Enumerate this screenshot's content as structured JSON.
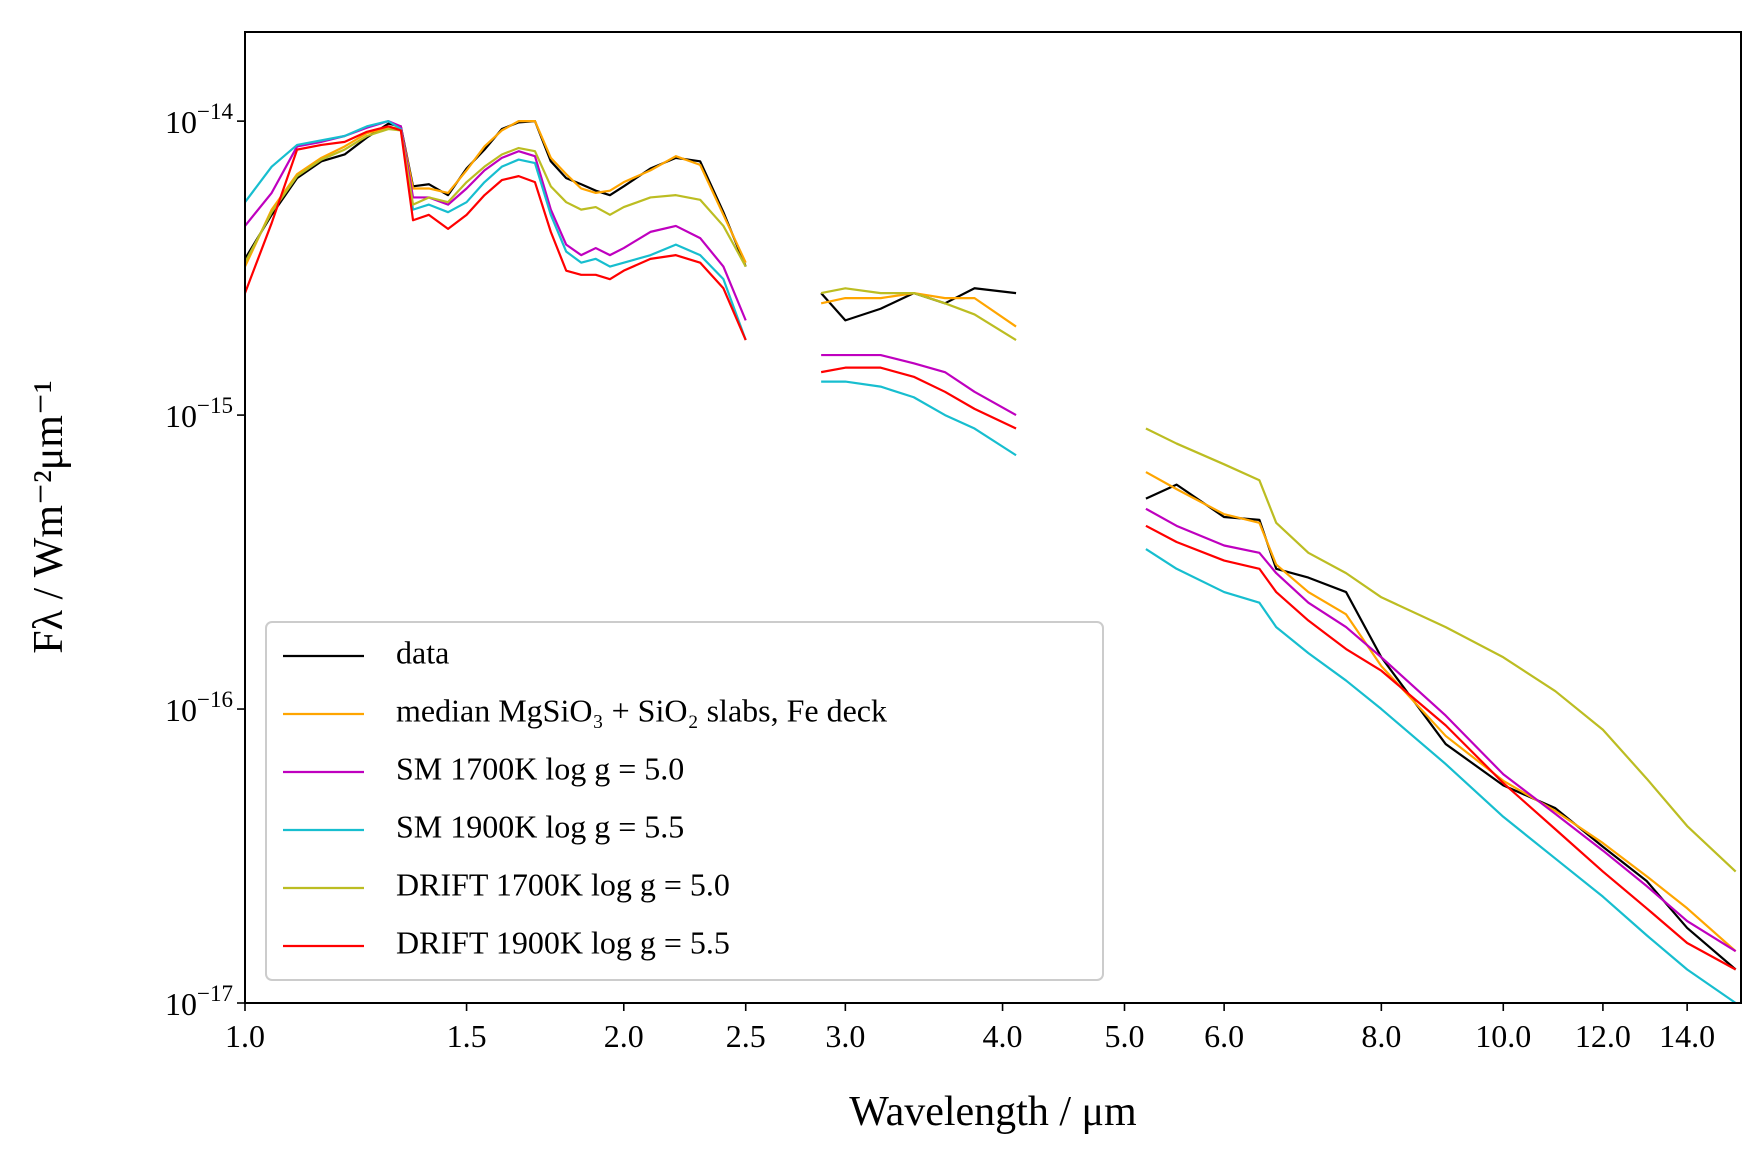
{
  "chart_data": {
    "type": "line",
    "x_label": "Wavelength / μm",
    "y_label": "Fλ / Wm⁻²μm⁻¹",
    "xscale": "log",
    "yscale": "log",
    "xlim": [
      1.0,
      15.45
    ],
    "ylim": [
      1e-17,
      2.01e-14
    ],
    "xticks": [
      {
        "value": 1.0,
        "label": "1.0"
      },
      {
        "value": 1.5,
        "label": "1.5"
      },
      {
        "value": 2.0,
        "label": "2.0"
      },
      {
        "value": 2.5,
        "label": "2.5"
      },
      {
        "value": 3.0,
        "label": "3.0"
      },
      {
        "value": 4.0,
        "label": "4.0"
      },
      {
        "value": 5.0,
        "label": "5.0"
      },
      {
        "value": 6.0,
        "label": "6.0"
      },
      {
        "value": 8.0,
        "label": "8.0"
      },
      {
        "value": 10.0,
        "label": "10.0"
      },
      {
        "value": 12.0,
        "label": "12.0"
      },
      {
        "value": 14.0,
        "label": "14.0"
      }
    ],
    "yticks": [
      {
        "value": 1e-17,
        "label": "10−17"
      },
      {
        "value": 1e-16,
        "label": "10−16"
      },
      {
        "value": 1e-15,
        "label": "10−15"
      },
      {
        "value": 1e-14,
        "label": "10−14"
      }
    ],
    "legend": "lower left",
    "x": [
      1.0,
      1.05,
      1.1,
      1.15,
      1.2,
      1.25,
      1.3,
      1.33,
      1.36,
      1.4,
      1.45,
      1.5,
      1.55,
      1.6,
      1.65,
      1.7,
      1.75,
      1.8,
      1.85,
      1.9,
      1.95,
      2.0,
      2.1,
      2.2,
      2.3,
      2.4,
      2.5,
      2.7,
      2.87,
      3.0,
      3.2,
      3.4,
      3.6,
      3.8,
      4.1,
      4.6,
      5.2,
      5.5,
      6.0,
      6.4,
      6.6,
      7.0,
      7.5,
      8.0,
      9.0,
      10.0,
      11.0,
      12.0,
      13.0,
      14.0,
      15.3
    ],
    "series": [
      {
        "name": "data",
        "color": "#000000",
        "values": [
          3.4e-15,
          4.8e-15,
          6.4e-15,
          7.3e-15,
          7.7e-15,
          8.8e-15,
          9.8e-15,
          9.6e-15,
          6e-15,
          6.1e-15,
          5.6e-15,
          6.9e-15,
          8e-15,
          9.4e-15,
          9.9e-15,
          1e-14,
          7.3e-15,
          6.4e-15,
          6.1e-15,
          5.8e-15,
          5.6e-15,
          6e-15,
          6.9e-15,
          7.5e-15,
          7.3e-15,
          4.9e-15,
          3.2e-15,
          null,
          2.6e-15,
          2.1e-15,
          2.3e-15,
          2.6e-15,
          2.4e-15,
          2.7e-15,
          2.6e-15,
          null,
          5.2e-16,
          5.8e-16,
          4.5e-16,
          4.4e-16,
          3e-16,
          2.8e-16,
          2.5e-16,
          1.5e-16,
          7.6e-17,
          5.5e-17,
          4.6e-17,
          3.4e-17,
          2.6e-17,
          1.8e-17,
          1.3e-17
        ]
      },
      {
        "name": "median MgSiO₃ + SiO₂ slabs, Fe deck",
        "color": "#ffa500",
        "values": [
          3.2e-15,
          5e-15,
          6.6e-15,
          7.5e-15,
          8.2e-15,
          9.1e-15,
          9.5e-15,
          9.5e-15,
          5.9e-15,
          5.9e-15,
          5.7e-15,
          6.8e-15,
          8.2e-15,
          9.3e-15,
          1e-14,
          1e-14,
          7.5e-15,
          6.6e-15,
          5.9e-15,
          5.7e-15,
          5.8e-15,
          6.2e-15,
          6.8e-15,
          7.6e-15,
          7.1e-15,
          4.8e-15,
          3.3e-15,
          null,
          2.4e-15,
          2.5e-15,
          2.5e-15,
          2.6e-15,
          2.5e-15,
          2.5e-15,
          2e-15,
          null,
          6.4e-16,
          5.6e-16,
          4.6e-16,
          4.3e-16,
          3.1e-16,
          2.5e-16,
          2.1e-16,
          1.4e-16,
          8.1e-17,
          5.7e-17,
          4.5e-17,
          3.5e-17,
          2.7e-17,
          2.1e-17,
          1.5e-17
        ]
      },
      {
        "name": "SM 1700K log g = 5.0",
        "color": "#bf00bf",
        "values": [
          4.4e-15,
          5.7e-15,
          8.2e-15,
          8.5e-15,
          8.9e-15,
          9.5e-15,
          1e-14,
          9.6e-15,
          5.5e-15,
          5.5e-15,
          5.2e-15,
          5.9e-15,
          6.8e-15,
          7.5e-15,
          7.9e-15,
          7.6e-15,
          5e-15,
          3.8e-15,
          3.5e-15,
          3.7e-15,
          3.5e-15,
          3.7e-15,
          4.2e-15,
          4.4e-15,
          4e-15,
          3.2e-15,
          2.1e-15,
          null,
          1.6e-15,
          1.6e-15,
          1.6e-15,
          1.5e-15,
          1.4e-15,
          1.2e-15,
          1e-15,
          null,
          4.8e-16,
          4.2e-16,
          3.6e-16,
          3.4e-16,
          2.9e-16,
          2.3e-16,
          1.9e-16,
          1.5e-16,
          9.5e-17,
          6e-17,
          4.4e-17,
          3.3e-17,
          2.5e-17,
          1.9e-17,
          1.5e-17
        ]
      },
      {
        "name": "SM 1900K log g = 5.5",
        "color": "#17becf",
        "values": [
          5.3e-15,
          7e-15,
          8.3e-15,
          8.6e-15,
          8.9e-15,
          9.6e-15,
          1e-14,
          9.4e-15,
          5e-15,
          5.2e-15,
          4.9e-15,
          5.3e-15,
          6.2e-15,
          7e-15,
          7.4e-15,
          7.2e-15,
          4.8e-15,
          3.6e-15,
          3.3e-15,
          3.4e-15,
          3.2e-15,
          3.3e-15,
          3.5e-15,
          3.8e-15,
          3.5e-15,
          2.9e-15,
          1.8e-15,
          null,
          1.3e-15,
          1.3e-15,
          1.25e-15,
          1.15e-15,
          1e-15,
          9e-16,
          7.3e-16,
          null,
          3.5e-16,
          3e-16,
          2.5e-16,
          2.3e-16,
          1.9e-16,
          1.55e-16,
          1.25e-16,
          1e-16,
          6.5e-17,
          4.3e-17,
          3.1e-17,
          2.3e-17,
          1.7e-17,
          1.3e-17,
          1e-17
        ]
      },
      {
        "name": "DRIFT 1700K log g = 5.0",
        "color": "#bcbd22",
        "values": [
          3.3e-15,
          4.9e-15,
          6.5e-15,
          7.4e-15,
          8e-15,
          8.9e-15,
          9.4e-15,
          9.3e-15,
          5.2e-15,
          5.5e-15,
          5.3e-15,
          6.2e-15,
          7e-15,
          7.7e-15,
          8.1e-15,
          7.9e-15,
          6e-15,
          5.3e-15,
          5e-15,
          5.1e-15,
          4.8e-15,
          5.1e-15,
          5.5e-15,
          5.6e-15,
          5.4e-15,
          4.4e-15,
          3.2e-15,
          null,
          2.6e-15,
          2.7e-15,
          2.6e-15,
          2.6e-15,
          2.4e-15,
          2.2e-15,
          1.8e-15,
          null,
          9e-16,
          8e-16,
          6.8e-16,
          6e-16,
          4.3e-16,
          3.4e-16,
          2.9e-16,
          2.4e-16,
          1.9e-16,
          1.5e-16,
          1.15e-16,
          8.5e-17,
          5.8e-17,
          4e-17,
          2.8e-17
        ]
      },
      {
        "name": "DRIFT 1900K log g = 5.5",
        "color": "#ff0000",
        "values": [
          2.6e-15,
          4.5e-15,
          8e-15,
          8.3e-15,
          8.5e-15,
          9.2e-15,
          9.6e-15,
          9.3e-15,
          4.6e-15,
          4.8e-15,
          4.3e-15,
          4.8e-15,
          5.6e-15,
          6.3e-15,
          6.5e-15,
          6.2e-15,
          4.2e-15,
          3.1e-15,
          3e-15,
          3e-15,
          2.9e-15,
          3.1e-15,
          3.4e-15,
          3.5e-15,
          3.3e-15,
          2.7e-15,
          1.8e-15,
          null,
          1.4e-15,
          1.45e-15,
          1.45e-15,
          1.35e-15,
          1.2e-15,
          1.05e-15,
          9e-16,
          null,
          4.2e-16,
          3.7e-16,
          3.2e-16,
          3e-16,
          2.5e-16,
          2e-16,
          1.6e-16,
          1.35e-16,
          8.8e-17,
          5.6e-17,
          3.9e-17,
          2.8e-17,
          2.1e-17,
          1.6e-17,
          1.3e-17
        ]
      }
    ]
  }
}
